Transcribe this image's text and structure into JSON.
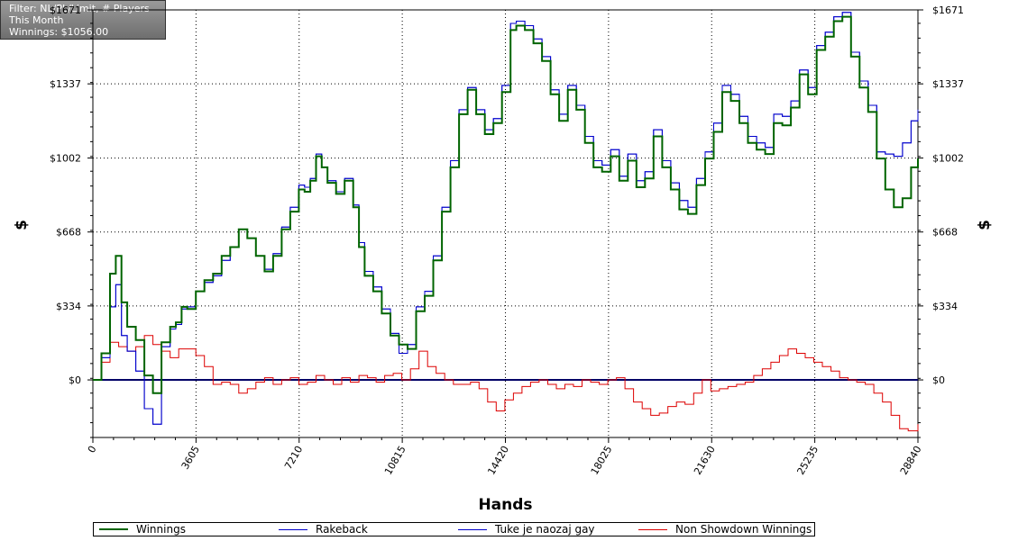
{
  "filter_box": {
    "lines": [
      "Filter: NL/PL/Limit, # Players",
      "This Month",
      "Winnings: $1056.00"
    ]
  },
  "chart_data": {
    "type": "line",
    "title": "",
    "xlabel": "Hands",
    "ylabel": "$",
    "xlim": [
      0,
      28840
    ],
    "ylim": [
      -260,
      1671
    ],
    "x_ticks": [
      0,
      3605,
      7210,
      10815,
      14420,
      18025,
      21630,
      25235,
      28840
    ],
    "y_ticks": [
      0,
      334,
      668,
      1002,
      1337,
      1671
    ],
    "y_tick_labels": [
      "$0",
      "$334",
      "$668",
      "$1002",
      "$1337",
      "$1671"
    ],
    "grid": true,
    "legend_position": "bottom",
    "colors": {
      "Winnings": "#006400",
      "Rakeback": "#0000cc",
      "Tuke je naozaj gay": "#0000cc",
      "Non Showdown Winnings": "#dd0000",
      "zero_line": "#000066"
    },
    "series": [
      {
        "name": "Winnings",
        "x": [
          0,
          300,
          600,
          800,
          1000,
          1200,
          1500,
          1800,
          2100,
          2400,
          2700,
          2900,
          3100,
          3300,
          3600,
          3900,
          4200,
          4500,
          4800,
          5100,
          5400,
          5700,
          6000,
          6300,
          6600,
          6900,
          7200,
          7400,
          7600,
          7800,
          8000,
          8200,
          8500,
          8800,
          9100,
          9300,
          9500,
          9800,
          10100,
          10400,
          10700,
          11000,
          11300,
          11600,
          11900,
          12200,
          12500,
          12800,
          13100,
          13400,
          13700,
          14000,
          14300,
          14600,
          14800,
          15100,
          15400,
          15700,
          16000,
          16300,
          16600,
          16900,
          17200,
          17500,
          17800,
          18100,
          18400,
          18700,
          19000,
          19300,
          19600,
          19900,
          20200,
          20500,
          20800,
          21100,
          21400,
          21700,
          22000,
          22300,
          22600,
          22900,
          23200,
          23500,
          23800,
          24100,
          24400,
          24700,
          25000,
          25300,
          25600,
          25900,
          26200,
          26500,
          26800,
          27100,
          27400,
          27700,
          28000,
          28300,
          28600,
          28840
        ],
        "values": [
          0,
          120,
          480,
          560,
          350,
          240,
          180,
          20,
          -60,
          170,
          240,
          260,
          330,
          320,
          400,
          450,
          480,
          560,
          600,
          680,
          640,
          560,
          490,
          560,
          680,
          760,
          860,
          850,
          900,
          1010,
          960,
          890,
          840,
          900,
          780,
          600,
          470,
          400,
          300,
          200,
          160,
          140,
          310,
          380,
          540,
          760,
          960,
          1200,
          1310,
          1200,
          1110,
          1160,
          1300,
          1580,
          1600,
          1580,
          1520,
          1440,
          1290,
          1170,
          1310,
          1220,
          1070,
          960,
          940,
          1010,
          900,
          990,
          870,
          910,
          1100,
          960,
          860,
          770,
          750,
          880,
          1000,
          1120,
          1300,
          1260,
          1160,
          1070,
          1040,
          1020,
          1160,
          1150,
          1230,
          1380,
          1290,
          1490,
          1550,
          1620,
          1640,
          1460,
          1320,
          1210,
          1000,
          860,
          780,
          820,
          960,
          1000
        ]
      },
      {
        "name": "Rakeback",
        "x": [
          0,
          300,
          600,
          800,
          1000,
          1200,
          1500,
          1800,
          2100,
          2400,
          2700,
          2900,
          3100,
          3300,
          3600,
          3900,
          4200,
          4500,
          4800,
          5100,
          5400,
          5700,
          6000,
          6300,
          6600,
          6900,
          7200,
          7400,
          7600,
          7800,
          8000,
          8200,
          8500,
          8800,
          9100,
          9300,
          9500,
          9800,
          10100,
          10400,
          10700,
          11000,
          11300,
          11600,
          11900,
          12200,
          12500,
          12800,
          13100,
          13400,
          13700,
          14000,
          14300,
          14600,
          14800,
          15100,
          15400,
          15700,
          16000,
          16300,
          16600,
          16900,
          17200,
          17500,
          17800,
          18100,
          18400,
          18700,
          19000,
          19300,
          19600,
          19900,
          20200,
          20500,
          20800,
          21100,
          21400,
          21700,
          22000,
          22300,
          22600,
          22900,
          23200,
          23500,
          23800,
          24100,
          24400,
          24700,
          25000,
          25300,
          25600,
          25900,
          26200,
          26500,
          26800,
          27100,
          27400,
          27700,
          28000,
          28300,
          28600,
          28840
        ],
        "values": [
          0,
          100,
          330,
          430,
          200,
          130,
          40,
          -130,
          -200,
          150,
          230,
          250,
          320,
          330,
          400,
          440,
          470,
          540,
          600,
          680,
          640,
          560,
          500,
          570,
          690,
          780,
          880,
          870,
          910,
          1020,
          960,
          900,
          850,
          910,
          790,
          620,
          490,
          420,
          320,
          210,
          120,
          160,
          330,
          400,
          560,
          780,
          990,
          1220,
          1320,
          1220,
          1130,
          1180,
          1330,
          1610,
          1620,
          1600,
          1540,
          1460,
          1310,
          1200,
          1330,
          1240,
          1100,
          990,
          970,
          1040,
          920,
          1020,
          900,
          940,
          1130,
          990,
          890,
          810,
          780,
          910,
          1030,
          1160,
          1330,
          1290,
          1190,
          1100,
          1070,
          1050,
          1200,
          1190,
          1260,
          1400,
          1320,
          1510,
          1570,
          1640,
          1660,
          1480,
          1350,
          1240,
          1030,
          1020,
          1010,
          1070,
          1170,
          1220
        ]
      },
      {
        "name": "Tuke je naozaj gay",
        "x": [
          0,
          300,
          600,
          800,
          1000,
          1200,
          1500,
          1800,
          2100,
          2400,
          2700,
          2900,
          3100,
          3300,
          3600,
          3900,
          4200,
          4500,
          4800,
          5100,
          5400,
          5700,
          6000,
          6300,
          6600,
          6900,
          7200,
          7400,
          7600,
          7800,
          8000,
          8200,
          8500,
          8800,
          9100,
          9300,
          9500,
          9800,
          10100,
          10400,
          10700,
          11000,
          11300,
          11600,
          11900,
          12200,
          12500,
          12800,
          13100,
          13400,
          13700,
          14000,
          14300,
          14600,
          14800,
          15100,
          15400,
          15700,
          16000,
          16300,
          16600,
          16900,
          17200,
          17500,
          17800,
          18100,
          18400,
          18700,
          19000,
          19300,
          19600,
          19900,
          20200,
          20500,
          20800,
          21100,
          21400,
          21700,
          22000,
          22300,
          22600,
          22900,
          23200,
          23500,
          23800,
          24100,
          24400,
          24700,
          25000,
          25300,
          25600,
          25900,
          26200,
          26500,
          26800,
          27100,
          27400,
          27700,
          28000,
          28300,
          28600,
          28840
        ],
        "values": [
          0,
          100,
          330,
          430,
          200,
          130,
          40,
          -130,
          -200,
          150,
          230,
          250,
          320,
          330,
          400,
          440,
          470,
          540,
          600,
          680,
          640,
          560,
          500,
          570,
          690,
          780,
          880,
          870,
          910,
          1020,
          960,
          900,
          850,
          910,
          790,
          620,
          490,
          420,
          320,
          210,
          120,
          160,
          330,
          400,
          560,
          780,
          990,
          1220,
          1320,
          1220,
          1130,
          1180,
          1330,
          1610,
          1620,
          1600,
          1540,
          1460,
          1310,
          1200,
          1330,
          1240,
          1100,
          990,
          970,
          1040,
          920,
          1020,
          900,
          940,
          1130,
          990,
          890,
          810,
          780,
          910,
          1030,
          1160,
          1330,
          1290,
          1190,
          1100,
          1070,
          1050,
          1200,
          1190,
          1260,
          1400,
          1320,
          1510,
          1570,
          1640,
          1660,
          1480,
          1350,
          1240,
          1030,
          1020,
          1010,
          1070,
          1170,
          1220
        ]
      },
      {
        "name": "Non Showdown Winnings",
        "x": [
          0,
          300,
          600,
          900,
          1200,
          1500,
          1800,
          2100,
          2400,
          2700,
          3000,
          3300,
          3600,
          3900,
          4200,
          4500,
          4800,
          5100,
          5400,
          5700,
          6000,
          6300,
          6600,
          6900,
          7200,
          7500,
          7800,
          8100,
          8400,
          8700,
          9000,
          9300,
          9600,
          9900,
          10200,
          10500,
          10800,
          11100,
          11400,
          11700,
          12000,
          12300,
          12600,
          12900,
          13200,
          13500,
          13800,
          14100,
          14400,
          14700,
          15000,
          15300,
          15600,
          15900,
          16200,
          16500,
          16800,
          17100,
          17400,
          17700,
          18000,
          18300,
          18600,
          18900,
          19200,
          19500,
          19800,
          20100,
          20400,
          20700,
          21000,
          21300,
          21600,
          21900,
          22200,
          22500,
          22800,
          23100,
          23400,
          23700,
          24000,
          24300,
          24600,
          24900,
          25200,
          25500,
          25800,
          26100,
          26400,
          26700,
          27000,
          27300,
          27600,
          27900,
          28200,
          28500,
          28840
        ],
        "values": [
          0,
          80,
          170,
          150,
          130,
          150,
          200,
          160,
          130,
          100,
          140,
          140,
          110,
          60,
          -20,
          -10,
          -20,
          -60,
          -40,
          -10,
          10,
          -20,
          0,
          10,
          -20,
          -10,
          20,
          0,
          -20,
          10,
          -10,
          20,
          10,
          -10,
          20,
          30,
          0,
          50,
          130,
          60,
          30,
          0,
          -20,
          -20,
          -10,
          -40,
          -100,
          -140,
          -90,
          -60,
          -30,
          -10,
          0,
          -20,
          -40,
          -20,
          -30,
          0,
          -10,
          -20,
          0,
          10,
          -40,
          -100,
          -130,
          -160,
          -150,
          -120,
          -100,
          -110,
          -60,
          0,
          -50,
          -40,
          -30,
          -20,
          -10,
          20,
          50,
          80,
          110,
          140,
          120,
          100,
          80,
          60,
          40,
          10,
          0,
          -10,
          -20,
          -60,
          -100,
          -160,
          -220,
          -230,
          -200
        ]
      }
    ]
  }
}
